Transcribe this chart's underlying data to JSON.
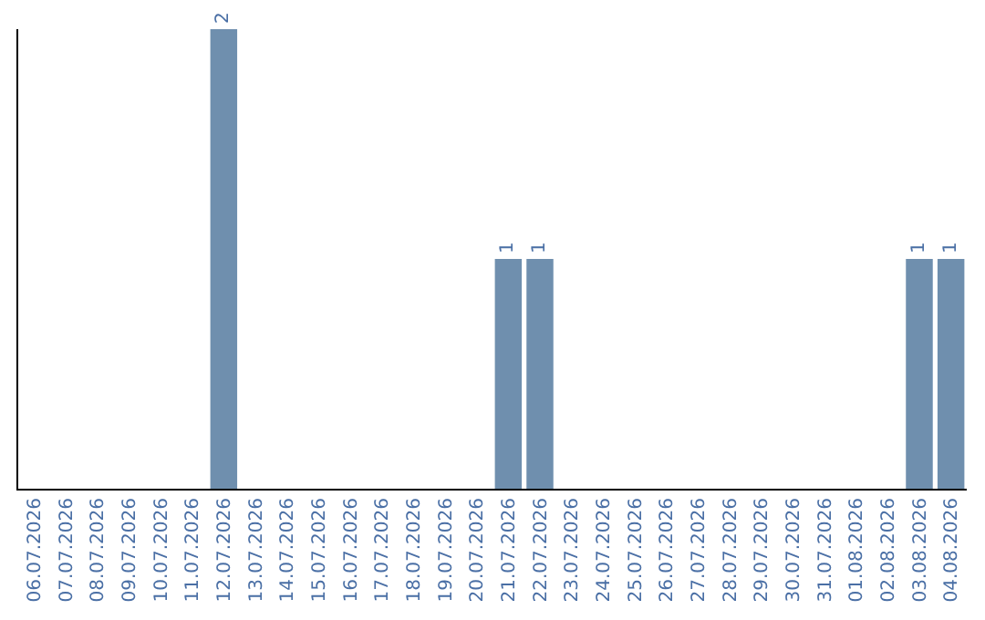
{
  "chart_data": {
    "type": "bar",
    "categories": [
      "06.07.2026",
      "07.07.2026",
      "08.07.2026",
      "09.07.2026",
      "10.07.2026",
      "11.07.2026",
      "12.07.2026",
      "13.07.2026",
      "14.07.2026",
      "15.07.2026",
      "16.07.2026",
      "17.07.2026",
      "18.07.2026",
      "19.07.2026",
      "20.07.2026",
      "21.07.2026",
      "22.07.2026",
      "23.07.2026",
      "24.07.2026",
      "25.07.2026",
      "26.07.2026",
      "27.07.2026",
      "28.07.2026",
      "29.07.2026",
      "30.07.2026",
      "31.07.2026",
      "01.08.2026",
      "02.08.2026",
      "03.08.2026",
      "04.08.2026"
    ],
    "values": [
      0,
      0,
      0,
      0,
      0,
      0,
      2,
      0,
      0,
      0,
      0,
      0,
      0,
      0,
      0,
      1,
      1,
      0,
      0,
      0,
      0,
      0,
      0,
      0,
      0,
      0,
      0,
      0,
      1,
      1
    ],
    "value_labels": [
      null,
      null,
      null,
      null,
      null,
      null,
      "2",
      null,
      null,
      null,
      null,
      null,
      null,
      null,
      null,
      "1",
      "1",
      null,
      null,
      null,
      null,
      null,
      null,
      null,
      null,
      null,
      null,
      null,
      "1",
      "1"
    ],
    "color": "#6f8fae",
    "tick_labels": "x",
    "legend": false
  }
}
